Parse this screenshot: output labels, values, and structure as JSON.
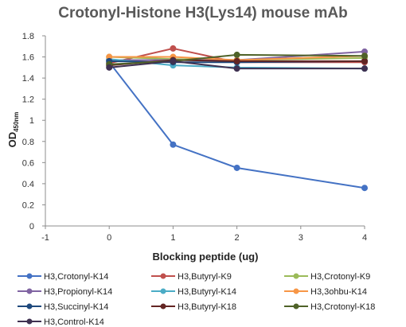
{
  "chart_data": {
    "type": "line",
    "title": "Crotonyl-Histone H3(Lys14) mouse mAb",
    "xlabel": "Blocking peptide (ug)",
    "ylabel_main": "OD",
    "ylabel_sub": "450nm",
    "xlim": [
      -1,
      4
    ],
    "ylim": [
      0,
      1.8
    ],
    "x_ticks": [
      -1,
      0,
      1,
      2,
      3,
      4
    ],
    "y_ticks": [
      0,
      0.2,
      0.4,
      0.6,
      0.8,
      1.0,
      1.2,
      1.4,
      1.6,
      1.8
    ],
    "x_tick_labels": [
      "-1",
      "0",
      "1",
      "2",
      "3",
      "4"
    ],
    "y_tick_labels": [
      "0",
      "0.2",
      "0.4",
      "0.6",
      "0.8",
      "1",
      "1.2",
      "1.4",
      "1.6",
      "1.8"
    ],
    "grid": false,
    "legend_position": "bottom",
    "x": [
      0,
      1,
      2,
      4
    ],
    "series": [
      {
        "name": "H3,Crotonyl-K14",
        "color": "#4472C4",
        "values": [
          1.55,
          0.77,
          0.55,
          0.36
        ]
      },
      {
        "name": "H3,Butyryl-K9",
        "color": "#C0504D",
        "values": [
          1.54,
          1.68,
          1.55,
          1.55
        ]
      },
      {
        "name": "H3,Crotonyl-K9",
        "color": "#9BBB59",
        "values": [
          1.6,
          1.58,
          1.57,
          1.59
        ]
      },
      {
        "name": "H3,Propionyl-K14",
        "color": "#8064A2",
        "values": [
          1.57,
          1.57,
          1.57,
          1.65
        ]
      },
      {
        "name": "H3,Butyryl-K14",
        "color": "#4BACC6",
        "values": [
          1.58,
          1.52,
          1.5,
          1.49
        ]
      },
      {
        "name": "H3,3ohbu-K14",
        "color": "#F79646",
        "values": [
          1.6,
          1.6,
          1.57,
          1.61
        ]
      },
      {
        "name": "H3,Succinyl-K14",
        "color": "#1F497D",
        "values": [
          1.56,
          1.55,
          1.55,
          1.56
        ]
      },
      {
        "name": "H3,Butyryl-K18",
        "color": "#632523",
        "values": [
          1.52,
          1.57,
          1.56,
          1.56
        ]
      },
      {
        "name": "H3,Crotonyl-K18",
        "color": "#4F6228",
        "values": [
          1.53,
          1.56,
          1.62,
          1.61
        ]
      },
      {
        "name": "H3,Control-K14",
        "color": "#3F3151",
        "values": [
          1.5,
          1.56,
          1.49,
          1.49
        ]
      }
    ]
  }
}
